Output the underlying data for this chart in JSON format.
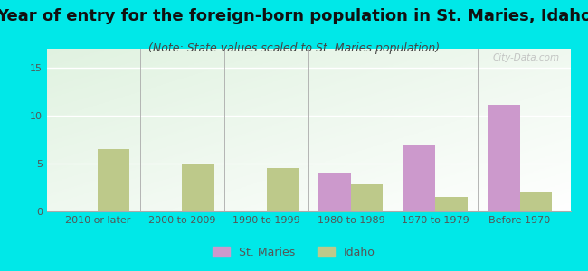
{
  "title": "Year of entry for the foreign-born population in St. Maries, Idaho",
  "subtitle": "(Note: State values scaled to St. Maries population)",
  "categories": [
    "2010 or later",
    "2000 to 2009",
    "1990 to 1999",
    "1980 to 1989",
    "1970 to 1979",
    "Before 1970"
  ],
  "st_maries": [
    0,
    0,
    0,
    4.0,
    7.0,
    11.1
  ],
  "idaho": [
    6.5,
    5.0,
    4.5,
    2.8,
    1.5,
    2.0
  ],
  "st_maries_color": "#cc99cc",
  "idaho_color": "#bdc98a",
  "background_color": "#00e8e8",
  "ylim": [
    0,
    17
  ],
  "yticks": [
    0,
    5,
    10,
    15
  ],
  "bar_width": 0.38,
  "title_fontsize": 13,
  "subtitle_fontsize": 9,
  "tick_fontsize": 8,
  "legend_fontsize": 9,
  "watermark": "City-Data.com"
}
